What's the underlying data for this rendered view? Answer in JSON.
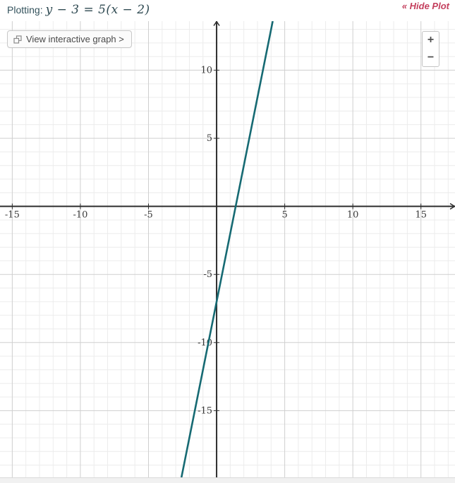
{
  "header": {
    "plotting_label": "Plotting:",
    "equation": "y − 3 = 5(x − 2)",
    "hide_plot_label": "« Hide Plot"
  },
  "toolbar": {
    "view_graph_label": "View interactive graph >",
    "view_graph_icon": "overlapping-squares-icon"
  },
  "zoom_controls": {
    "zoom_in_label": "+",
    "zoom_out_label": "−"
  },
  "ui_colors": {
    "header_text": "#33525c",
    "hide_plot_link": "#c4405e",
    "button_text": "#4a4a4a",
    "button_border": "#c8c8c8"
  },
  "chart_data": {
    "type": "line",
    "title": "y − 3 = 5(x − 2)",
    "series": [
      {
        "name": "y − 3 = 5(x − 2)",
        "slope": 5,
        "y_intercept": -7,
        "color": "#166a73",
        "sample_points": [
          [
            0,
            -7
          ],
          [
            1.4,
            0
          ],
          [
            2,
            3
          ]
        ]
      }
    ],
    "xlim": [
      -15.9,
      17.5
    ],
    "ylim": [
      -19.9,
      13.6
    ],
    "x_ticks": [
      -15,
      -10,
      -5,
      5,
      10,
      15
    ],
    "y_ticks": [
      10,
      5,
      -5,
      -10,
      -15
    ],
    "minor_step": 1,
    "major_step": 5,
    "grid": true,
    "legend": false,
    "axis_color": "#2e2e2e",
    "major_grid_color": "#cfcfcf",
    "minor_grid_color": "#ececec",
    "tick_label_color": "#3a3a3a"
  }
}
